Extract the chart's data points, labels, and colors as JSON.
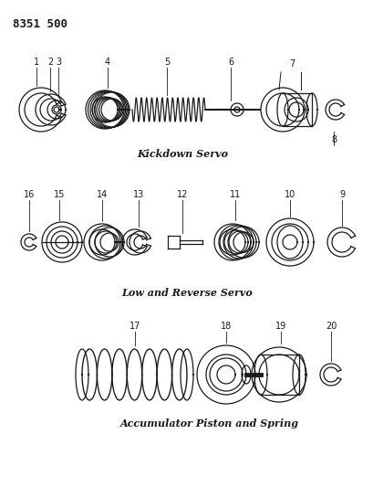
{
  "title_code": "8351 500",
  "background_color": "#ffffff",
  "line_color": "#1a1a1a",
  "section1_label": "Kickdown Servo",
  "section2_label": "Low and Reverse Servo",
  "section3_label": "Accumulator Piston and Spring",
  "fig_width": 4.1,
  "fig_height": 5.33,
  "dpi": 100,
  "s1y": 120,
  "s2y": 265,
  "s3y": 410
}
